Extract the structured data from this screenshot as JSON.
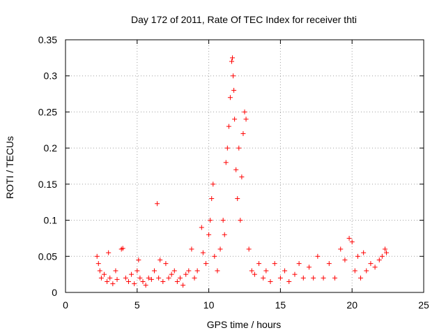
{
  "chart_data": {
    "type": "scatter",
    "title": "Day 172 of 2011, Rate Of TEC Index for receiver thti",
    "xlabel": "GPS time / hours",
    "ylabel": "ROTI / TECUs",
    "xlim": [
      0,
      25
    ],
    "ylim": [
      0,
      0.35
    ],
    "xticks": [
      0,
      5,
      10,
      15,
      20,
      25
    ],
    "xtick_labels": [
      "0",
      "5",
      "10",
      "15",
      "20",
      "25"
    ],
    "yticks": [
      0,
      0.05,
      0.1,
      0.15,
      0.2,
      0.25,
      0.3,
      0.35
    ],
    "ytick_labels": [
      "0",
      "0.05",
      "0.1",
      "0.15",
      "0.2",
      "0.25",
      "0.3",
      "0.35"
    ],
    "grid": true,
    "marker": "+",
    "color": "#ff0000",
    "series": [
      {
        "name": "ROTI",
        "points": [
          [
            2.2,
            0.05
          ],
          [
            2.3,
            0.04
          ],
          [
            2.4,
            0.03
          ],
          [
            2.5,
            0.02
          ],
          [
            2.7,
            0.025
          ],
          [
            2.9,
            0.015
          ],
          [
            3.0,
            0.055
          ],
          [
            3.1,
            0.02
          ],
          [
            3.3,
            0.012
          ],
          [
            3.5,
            0.03
          ],
          [
            3.6,
            0.018
          ],
          [
            3.9,
            0.06
          ],
          [
            4.0,
            0.061
          ],
          [
            4.2,
            0.02
          ],
          [
            4.4,
            0.015
          ],
          [
            4.6,
            0.025
          ],
          [
            4.8,
            0.012
          ],
          [
            5.0,
            0.03
          ],
          [
            5.1,
            0.045
          ],
          [
            5.2,
            0.02
          ],
          [
            5.4,
            0.015
          ],
          [
            5.6,
            0.01
          ],
          [
            5.8,
            0.02
          ],
          [
            6.0,
            0.018
          ],
          [
            6.2,
            0.03
          ],
          [
            6.4,
            0.123
          ],
          [
            6.5,
            0.02
          ],
          [
            6.6,
            0.045
          ],
          [
            6.8,
            0.015
          ],
          [
            7.0,
            0.04
          ],
          [
            7.2,
            0.02
          ],
          [
            7.4,
            0.025
          ],
          [
            7.6,
            0.03
          ],
          [
            7.8,
            0.015
          ],
          [
            8.0,
            0.02
          ],
          [
            8.2,
            0.01
          ],
          [
            8.4,
            0.025
          ],
          [
            8.6,
            0.03
          ],
          [
            8.8,
            0.06
          ],
          [
            9.0,
            0.02
          ],
          [
            9.2,
            0.03
          ],
          [
            9.5,
            0.09
          ],
          [
            9.6,
            0.055
          ],
          [
            9.8,
            0.04
          ],
          [
            10.0,
            0.08
          ],
          [
            10.1,
            0.1
          ],
          [
            10.2,
            0.13
          ],
          [
            10.3,
            0.15
          ],
          [
            10.4,
            0.05
          ],
          [
            10.6,
            0.03
          ],
          [
            10.8,
            0.06
          ],
          [
            11.0,
            0.1
          ],
          [
            11.1,
            0.08
          ],
          [
            11.2,
            0.18
          ],
          [
            11.3,
            0.2
          ],
          [
            11.4,
            0.23
          ],
          [
            11.5,
            0.27
          ],
          [
            11.6,
            0.32
          ],
          [
            11.65,
            0.325
          ],
          [
            11.7,
            0.3
          ],
          [
            11.75,
            0.28
          ],
          [
            11.8,
            0.24
          ],
          [
            11.9,
            0.17
          ],
          [
            12.0,
            0.13
          ],
          [
            12.1,
            0.2
          ],
          [
            12.2,
            0.1
          ],
          [
            12.3,
            0.16
          ],
          [
            12.4,
            0.22
          ],
          [
            12.5,
            0.25
          ],
          [
            12.6,
            0.24
          ],
          [
            12.8,
            0.06
          ],
          [
            13.0,
            0.03
          ],
          [
            13.2,
            0.025
          ],
          [
            13.5,
            0.04
          ],
          [
            13.8,
            0.02
          ],
          [
            14.0,
            0.03
          ],
          [
            14.3,
            0.015
          ],
          [
            14.6,
            0.04
          ],
          [
            15.0,
            0.02
          ],
          [
            15.3,
            0.03
          ],
          [
            15.6,
            0.015
          ],
          [
            16.0,
            0.025
          ],
          [
            16.3,
            0.04
          ],
          [
            16.6,
            0.02
          ],
          [
            17.0,
            0.035
          ],
          [
            17.3,
            0.02
          ],
          [
            17.6,
            0.05
          ],
          [
            18.0,
            0.02
          ],
          [
            18.4,
            0.04
          ],
          [
            18.8,
            0.02
          ],
          [
            19.2,
            0.06
          ],
          [
            19.5,
            0.045
          ],
          [
            19.8,
            0.075
          ],
          [
            20.0,
            0.07
          ],
          [
            20.2,
            0.03
          ],
          [
            20.4,
            0.05
          ],
          [
            20.6,
            0.02
          ],
          [
            20.8,
            0.055
          ],
          [
            21.0,
            0.03
          ],
          [
            21.3,
            0.04
          ],
          [
            21.6,
            0.035
          ],
          [
            21.9,
            0.045
          ],
          [
            22.1,
            0.05
          ],
          [
            22.3,
            0.06
          ],
          [
            22.4,
            0.055
          ]
        ]
      }
    ]
  }
}
